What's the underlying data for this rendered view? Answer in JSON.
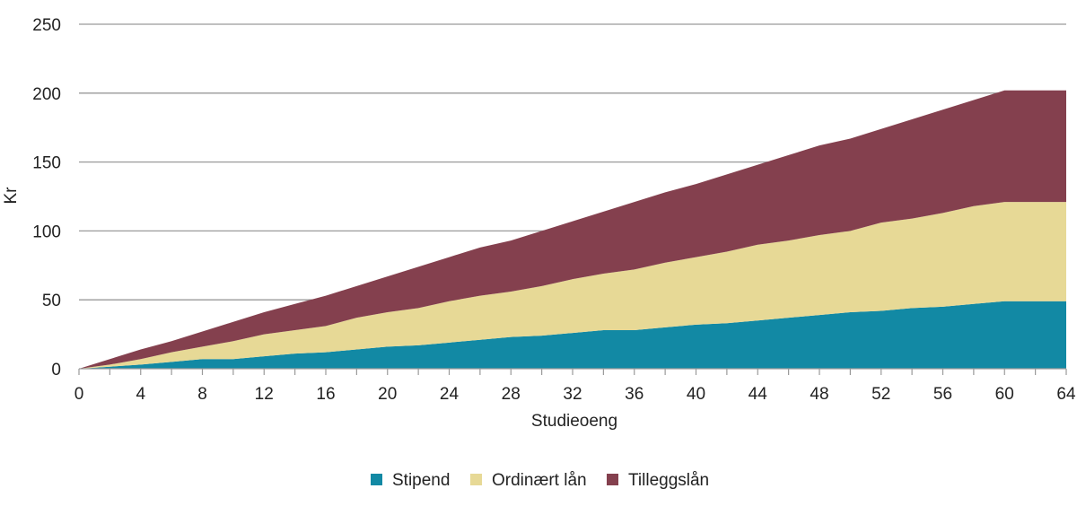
{
  "chart_data": {
    "type": "area",
    "stacked": true,
    "title": "",
    "xlabel": "Studieoeng",
    "ylabel": "Kr",
    "xlim": [
      0,
      64
    ],
    "ylim": [
      0,
      250
    ],
    "xticks": [
      0,
      4,
      8,
      12,
      16,
      20,
      24,
      28,
      32,
      36,
      40,
      44,
      48,
      52,
      56,
      60,
      64
    ],
    "yticks": [
      0,
      50,
      100,
      150,
      200,
      250
    ],
    "grid": true,
    "legend_position": "bottom",
    "x": [
      0,
      2,
      4,
      6,
      8,
      10,
      12,
      14,
      16,
      18,
      20,
      22,
      24,
      26,
      28,
      30,
      32,
      34,
      36,
      38,
      40,
      42,
      44,
      46,
      48,
      50,
      52,
      54,
      56,
      58,
      60,
      62,
      64
    ],
    "series": [
      {
        "name": "Stipend",
        "color": "#1289a4",
        "values": [
          0,
          1.5,
          3,
          5,
          7,
          7,
          9,
          11,
          12,
          14,
          16,
          17,
          19,
          21,
          23,
          24,
          26,
          28,
          28,
          30,
          32,
          33,
          35,
          37,
          39,
          41,
          42,
          44,
          45,
          47,
          49,
          49,
          49
        ]
      },
      {
        "name": "Ordinært lån",
        "color": "#e7d996",
        "values": [
          0,
          1.5,
          4,
          7,
          9,
          13,
          16,
          17,
          19,
          23,
          25,
          27,
          30,
          32,
          33,
          36,
          39,
          41,
          44,
          47,
          49,
          52,
          55,
          56,
          58,
          59,
          64,
          65,
          68,
          71,
          72,
          72,
          72
        ]
      },
      {
        "name": "Tilleggslån",
        "color": "#84404e",
        "values": [
          0,
          4,
          7,
          8,
          11,
          14,
          16,
          19,
          22,
          23,
          26,
          30,
          32,
          35,
          37,
          40,
          42,
          45,
          49,
          51,
          53,
          56,
          58,
          62,
          65,
          67,
          68,
          72,
          75,
          77,
          81,
          81,
          81
        ]
      }
    ]
  }
}
